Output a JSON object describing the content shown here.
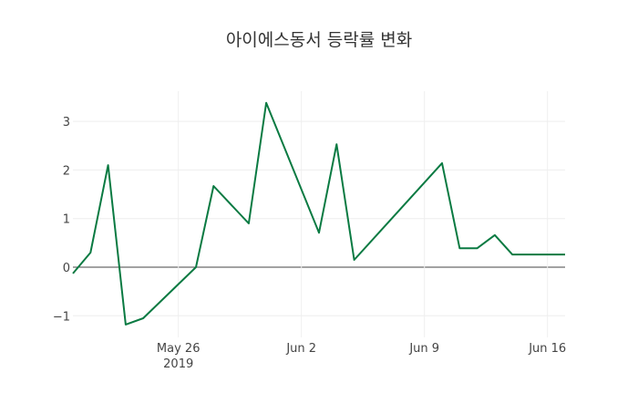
{
  "chart_data": {
    "type": "line",
    "title": "아이에스동서 등락률 변화",
    "xlabel": "",
    "ylabel": "",
    "line_color": "#0a7a42",
    "grid": true,
    "xlim": [
      "2019-05-20",
      "2019-06-17"
    ],
    "ylim": [
      -1.4,
      3.6
    ],
    "x_ticks": [
      {
        "date": "2019-05-26",
        "label": "May 26",
        "sublabel": "2019"
      },
      {
        "date": "2019-06-02",
        "label": "Jun 2"
      },
      {
        "date": "2019-06-09",
        "label": "Jun 9"
      },
      {
        "date": "2019-06-16",
        "label": "Jun 16"
      }
    ],
    "y_ticks": [
      {
        "value": -1,
        "label": "−1"
      },
      {
        "value": 0,
        "label": "0"
      },
      {
        "value": 1,
        "label": "1"
      },
      {
        "value": 2,
        "label": "2"
      },
      {
        "value": 3,
        "label": "3"
      }
    ],
    "series": [
      {
        "name": "등락률",
        "x": [
          "2019-05-20",
          "2019-05-21",
          "2019-05-22",
          "2019-05-23",
          "2019-05-24",
          "2019-05-27",
          "2019-05-28",
          "2019-05-30",
          "2019-05-31",
          "2019-06-03",
          "2019-06-04",
          "2019-06-05",
          "2019-06-10",
          "2019-06-11",
          "2019-06-12",
          "2019-06-13",
          "2019-06-14",
          "2019-06-17"
        ],
        "values": [
          -0.13,
          0.3,
          2.1,
          -1.18,
          -1.05,
          0.0,
          1.67,
          0.9,
          3.38,
          0.71,
          2.53,
          0.15,
          2.14,
          0.39,
          0.39,
          0.66,
          0.26,
          0.26
        ]
      }
    ]
  }
}
